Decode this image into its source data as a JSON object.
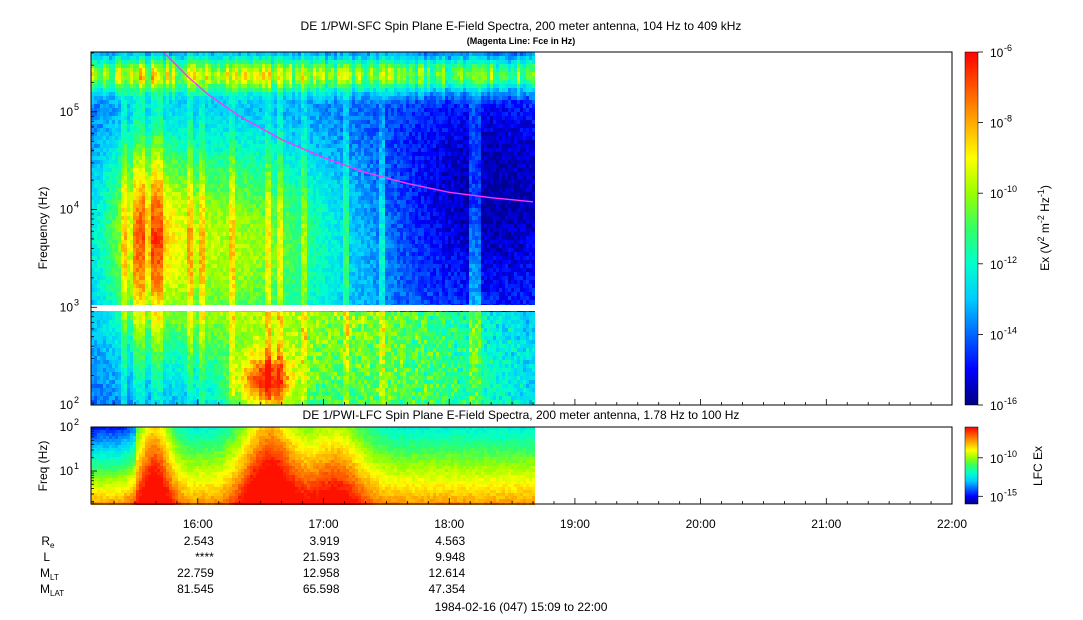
{
  "colors": {
    "fce_line": "#ff33ff",
    "colormap": [
      "#000080",
      "#0000ff",
      "#0066ff",
      "#00ccff",
      "#00ffcc",
      "#33ff66",
      "#99ff00",
      "#ffff00",
      "#ffaa00",
      "#ff5500",
      "#ff0000"
    ]
  },
  "chart_data": [
    {
      "type": "heatmap",
      "title": "DE 1/PWI-SFC  Spin Plane E-Field Spectra, 200 meter antenna, 104 Hz to 409 kHz",
      "subtitle": "(Magenta Line: Fce in Hz)",
      "ylabel": "Frequency (Hz)",
      "yscale": "log",
      "ylim": [
        100,
        409000
      ],
      "yticks": [
        {
          "value": 100,
          "label": "10",
          "exp": "2"
        },
        {
          "value": 1000,
          "label": "10",
          "exp": "3"
        },
        {
          "value": 10000,
          "label": "10",
          "exp": "4"
        },
        {
          "value": 100000,
          "label": "10",
          "exp": "5"
        }
      ],
      "data_end_time": "18:40",
      "fce_line": {
        "name": "Fce",
        "x": [
          "15:44",
          "15:55",
          "16:05",
          "16:20",
          "16:40",
          "17:00",
          "17:20",
          "17:40",
          "18:00",
          "18:20",
          "18:40"
        ],
        "y": [
          400000,
          230000,
          150000,
          90000,
          52000,
          34000,
          24000,
          18500,
          15000,
          13200,
          12000
        ]
      },
      "colorbar": {
        "label": "Ex (V",
        "label_sup1": "2",
        "label_mid": " m",
        "label_sup2": "-2",
        "label_mid2": " Hz",
        "label_sup3": "-1",
        "label_end": ")",
        "scale": "log",
        "range": [
          1e-16,
          1e-06
        ],
        "ticks": [
          {
            "value": 1e-06,
            "label": "10",
            "exp": "-6"
          },
          {
            "value": 1e-08,
            "label": "10",
            "exp": "-8"
          },
          {
            "value": 1e-10,
            "label": "10",
            "exp": "-10"
          },
          {
            "value": 1e-12,
            "label": "10",
            "exp": "-12"
          },
          {
            "value": 1e-14,
            "label": "10",
            "exp": "-14"
          },
          {
            "value": 1e-16,
            "label": "10",
            "exp": "-16"
          }
        ]
      }
    },
    {
      "type": "heatmap",
      "title": "DE 1/PWI-LFC  Spin Plane E-Field Spectra, 200 meter antenna, 1.78 Hz to 100 Hz",
      "ylabel": "Freq (Hz)",
      "yscale": "log",
      "ylim": [
        1.78,
        100
      ],
      "yticks": [
        {
          "value": 100,
          "label": "10",
          "exp": "2"
        },
        {
          "value": 10,
          "label": "10",
          "exp": "1"
        }
      ],
      "data_end_time": "18:40",
      "colorbar": {
        "label": "LFC Ex",
        "scale": "log",
        "range": [
          1e-16,
          1e-06
        ],
        "ticks": [
          {
            "value": 1e-10,
            "label": "10",
            "exp": "-10"
          },
          {
            "value": 1e-15,
            "label": "10",
            "exp": "-15"
          }
        ]
      }
    }
  ],
  "x_axis": {
    "range": [
      "15:09",
      "22:00"
    ],
    "ticks": [
      "16:00",
      "17:00",
      "18:00",
      "19:00",
      "20:00",
      "21:00",
      "22:00"
    ]
  },
  "ephemeris": {
    "times": [
      "16:00",
      "17:00",
      "18:00"
    ],
    "rows": [
      {
        "label": "R",
        "sub": "e",
        "values": [
          "2.543",
          "3.919",
          "4.563"
        ]
      },
      {
        "label": "L",
        "sub": "",
        "values": [
          "****",
          "21.593",
          "9.948"
        ]
      },
      {
        "label": "M",
        "sub": "LT",
        "values": [
          "22.759",
          "12.958",
          "12.614"
        ]
      },
      {
        "label": "M",
        "sub": "LAT",
        "values": [
          "81.545",
          "65.598",
          "47.354"
        ]
      }
    ]
  },
  "footer": "1984-02-16 (047) 15:09 to 22:00"
}
